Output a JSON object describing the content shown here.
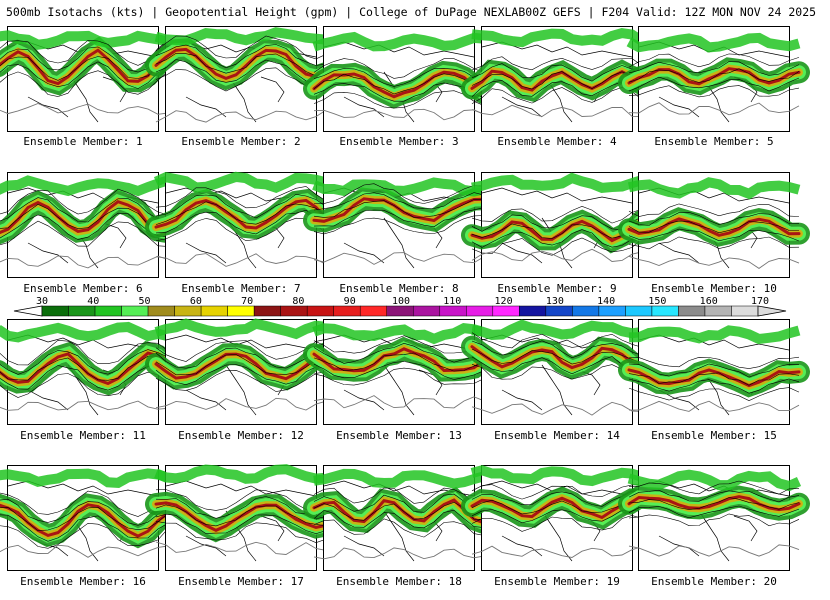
{
  "header": {
    "left": "500mb Isotachs (kts) | Geopotential Height (gpm) | College of DuPage NEXLAB",
    "right": "00Z GEFS | F204 Valid: 12Z MON NOV 24 2025"
  },
  "colorbar": {
    "labels": [
      "30",
      "40",
      "50",
      "60",
      "70",
      "80",
      "90",
      "100",
      "110",
      "120",
      "130",
      "140",
      "150",
      "160",
      "170"
    ],
    "colors": [
      "#0b6e0b",
      "#1a961a",
      "#22c422",
      "#55ee55",
      "#a08c1e",
      "#c8b414",
      "#e6d200",
      "#ffff00",
      "#8c1414",
      "#aa1414",
      "#c81414",
      "#e61e1e",
      "#ff2828",
      "#8c1478",
      "#aa14a0",
      "#c814c8",
      "#e61ee6",
      "#ff28ff",
      "#1414a0",
      "#1446c8",
      "#1478e6",
      "#1ea0ff",
      "#1ec8ff",
      "#28e6ff",
      "#8c8c8c",
      "#b4b4b4",
      "#dcdcdc"
    ]
  },
  "members": [
    {
      "label": "Ensemble Member: 1"
    },
    {
      "label": "Ensemble Member: 2"
    },
    {
      "label": "Ensemble Member: 3"
    },
    {
      "label": "Ensemble Member: 4"
    },
    {
      "label": "Ensemble Member: 5"
    },
    {
      "label": "Ensemble Member: 6"
    },
    {
      "label": "Ensemble Member: 7"
    },
    {
      "label": "Ensemble Member: 8"
    },
    {
      "label": "Ensemble Member: 9"
    },
    {
      "label": "Ensemble Member: 10"
    },
    {
      "label": "Ensemble Member: 11"
    },
    {
      "label": "Ensemble Member: 12"
    },
    {
      "label": "Ensemble Member: 13"
    },
    {
      "label": "Ensemble Member: 14"
    },
    {
      "label": "Ensemble Member: 15"
    },
    {
      "label": "Ensemble Member: 16"
    },
    {
      "label": "Ensemble Member: 17"
    },
    {
      "label": "Ensemble Member: 18"
    },
    {
      "label": "Ensemble Member: 19"
    },
    {
      "label": "Ensemble Member: 20"
    }
  ]
}
